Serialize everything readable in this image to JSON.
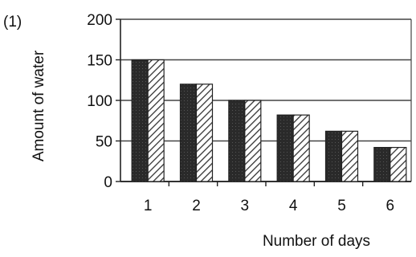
{
  "panel_label": "(1)",
  "chart_data": {
    "type": "bar",
    "categories": [
      "1",
      "2",
      "3",
      "4",
      "5",
      "6"
    ],
    "series": [
      {
        "values": [
          150,
          120,
          100,
          82,
          62,
          42
        ],
        "fill": "dark"
      },
      {
        "values": [
          150,
          120,
          100,
          82,
          62,
          42
        ],
        "fill": "hatched"
      }
    ],
    "xlabel": "Number of days",
    "ylabel": "Amount of water",
    "ylim": [
      0,
      200
    ],
    "yticks": [
      0,
      50,
      100,
      150,
      200
    ],
    "grid": true,
    "legend": "none",
    "colors": {
      "dark": "#2a2a2a",
      "hatch": "#333333",
      "axis": "#222222",
      "grid": "#444444"
    }
  }
}
